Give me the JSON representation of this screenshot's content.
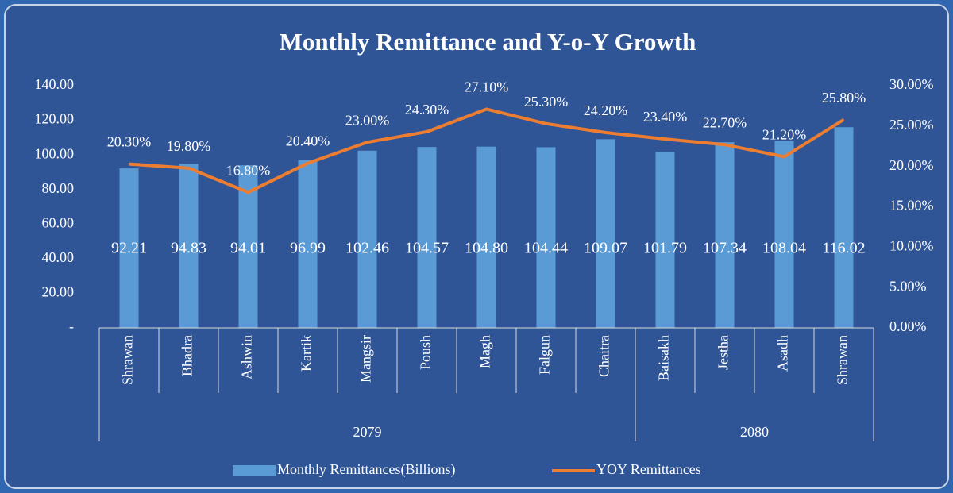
{
  "chart_data": {
    "type": "bar-line",
    "title": "Monthly Remittance and Y-o-Y Growth",
    "categories": [
      "Shrawan",
      "Bhadra",
      "Ashwin",
      "Kartik",
      "Mangsir",
      "Poush",
      "Magh",
      "Falgun",
      "Chaitra",
      "Baisakh",
      "Jestha",
      "Asadh",
      "Shrawan"
    ],
    "groups": [
      {
        "label": "2079",
        "count": 9
      },
      {
        "label": "2080",
        "count": 4
      }
    ],
    "series": [
      {
        "name": "Monthly Remittances(Billions)",
        "type": "bar",
        "color": "#5b9bd5",
        "values": [
          92.21,
          94.83,
          94.01,
          96.99,
          102.46,
          104.57,
          104.8,
          104.44,
          109.07,
          101.79,
          107.34,
          108.04,
          116.02
        ],
        "value_labels": [
          "92.21",
          "94.83",
          "94.01",
          "96.99",
          "102.46",
          "104.57",
          "104.80",
          "104.44",
          "109.07",
          "101.79",
          "107.34",
          "108.04",
          "116.02"
        ]
      },
      {
        "name": "YOY Remittances",
        "type": "line",
        "axis": "y2",
        "color": "#ed7d31",
        "values": [
          20.3,
          19.8,
          16.8,
          20.4,
          23.0,
          24.3,
          27.1,
          25.3,
          24.2,
          23.4,
          22.7,
          21.2,
          25.8
        ],
        "value_labels": [
          "20.30%",
          "19.80%",
          "16.80%",
          "20.40%",
          "23.00%",
          "24.30%",
          "27.10%",
          "25.30%",
          "24.20%",
          "23.40%",
          "22.70%",
          "21.20%",
          "25.80%"
        ]
      }
    ],
    "ylim": [
      0,
      140
    ],
    "yticks": [
      {
        "value": 0,
        "label": "-"
      },
      {
        "value": 20,
        "label": "20.00"
      },
      {
        "value": 40,
        "label": "40.00"
      },
      {
        "value": 60,
        "label": "60.00"
      },
      {
        "value": 80,
        "label": "80.00"
      },
      {
        "value": 100,
        "label": "100.00"
      },
      {
        "value": 120,
        "label": "120.00"
      },
      {
        "value": 140,
        "label": "140.00"
      }
    ],
    "y2lim": [
      0,
      30
    ],
    "y2ticks": [
      {
        "value": 0,
        "label": "0.00%"
      },
      {
        "value": 5,
        "label": "5.00%"
      },
      {
        "value": 10,
        "label": "10.00%"
      },
      {
        "value": 15,
        "label": "15.00%"
      },
      {
        "value": 20,
        "label": "20.00%"
      },
      {
        "value": 25,
        "label": "25.00%"
      },
      {
        "value": 30,
        "label": "30.00%"
      }
    ],
    "legend": "bottom"
  }
}
